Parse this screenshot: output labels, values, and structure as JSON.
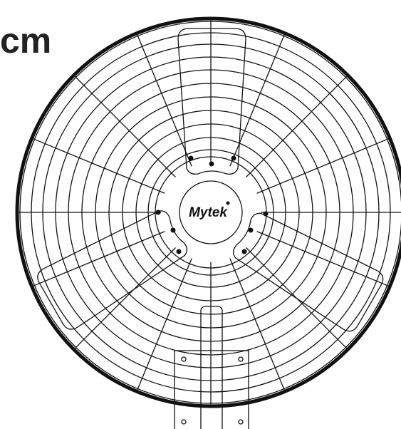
{
  "label": "cm",
  "logo": "Mytek"
}
